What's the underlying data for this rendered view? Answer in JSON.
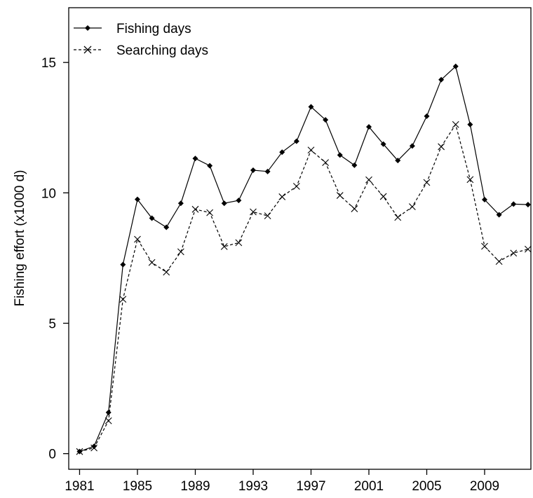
{
  "chart_data": {
    "type": "line",
    "title": "",
    "xlabel": "",
    "ylabel": "Fishing effort (x1000 d)",
    "xlim": [
      1980.25,
      2012.2
    ],
    "ylim": [
      -0.6,
      17.1
    ],
    "x_ticks": [
      1981,
      1985,
      1989,
      1993,
      1997,
      2001,
      2005,
      2009
    ],
    "y_ticks": [
      0,
      5,
      10,
      15
    ],
    "grid": false,
    "legend_position": "top-left",
    "x": [
      1981,
      1982,
      1983,
      1984,
      1985,
      1986,
      1987,
      1988,
      1989,
      1990,
      1991,
      1992,
      1993,
      1994,
      1995,
      1996,
      1997,
      1998,
      1999,
      2000,
      2001,
      2002,
      2003,
      2004,
      2005,
      2006,
      2007,
      2008,
      2009,
      2010,
      2011,
      2012
    ],
    "series": [
      {
        "name": "Fishing days",
        "line_style": "solid",
        "marker": "diamond",
        "color": "#000000",
        "values": [
          0.08,
          0.28,
          1.58,
          7.25,
          9.75,
          9.03,
          8.68,
          9.6,
          11.32,
          11.04,
          9.6,
          9.71,
          10.87,
          10.82,
          11.56,
          11.98,
          13.3,
          12.8,
          11.45,
          11.06,
          12.53,
          11.87,
          11.24,
          11.8,
          12.94,
          14.34,
          14.85,
          12.62,
          9.74,
          9.16,
          9.57,
          9.55
        ]
      },
      {
        "name": "Searching days",
        "line_style": "dashed",
        "marker": "x",
        "color": "#000000",
        "values": [
          0.08,
          0.22,
          1.26,
          5.92,
          8.22,
          7.33,
          6.96,
          7.74,
          9.37,
          9.24,
          7.94,
          8.09,
          9.27,
          9.12,
          9.85,
          10.25,
          11.64,
          11.16,
          9.9,
          9.39,
          10.5,
          9.86,
          9.06,
          9.47,
          10.4,
          11.77,
          12.62,
          10.51,
          7.95,
          7.37,
          7.69,
          7.84
        ]
      }
    ]
  }
}
